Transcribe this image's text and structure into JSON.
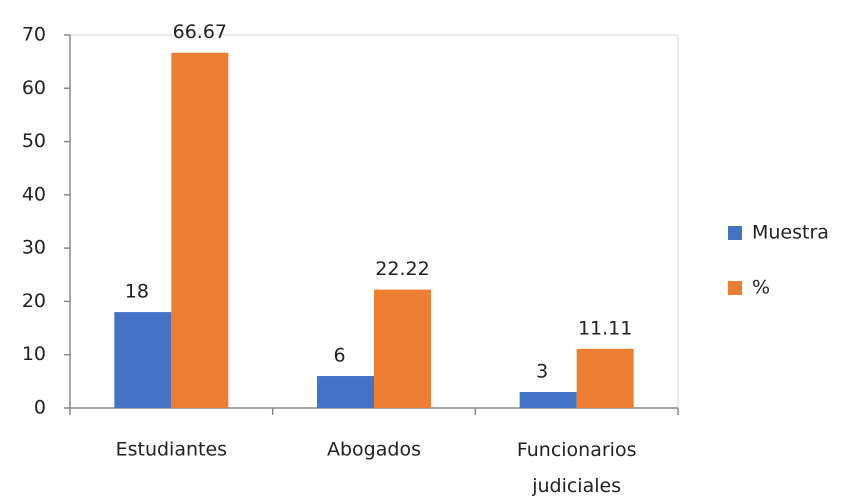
{
  "chart_data": {
    "type": "bar",
    "categories": [
      "Estudiantes",
      "Abogados",
      "Funcionarios judiciales"
    ],
    "series": [
      {
        "name": "Muestra",
        "color": "#4472c4",
        "values": [
          18,
          6,
          3
        ]
      },
      {
        "name": "%",
        "color": "#ed7d31",
        "values": [
          66.67,
          22.22,
          11.11
        ]
      }
    ],
    "ylim": [
      0,
      70
    ],
    "yticks": [
      0,
      10,
      20,
      30,
      40,
      50,
      60,
      70
    ],
    "grid": false,
    "legend": "right"
  }
}
